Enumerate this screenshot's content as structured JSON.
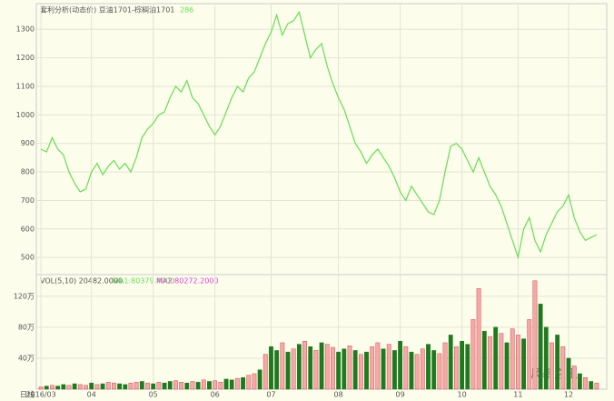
{
  "chart_data": [
    {
      "type": "line",
      "title": "套利分析(动态价) 豆油1701-棕榈油1701",
      "subtitle": "286",
      "period": "日线",
      "watermark": "风暴之王",
      "categories": [
        "2016/03",
        null,
        null,
        null,
        null,
        null,
        null,
        null,
        null,
        "04",
        null,
        null,
        null,
        null,
        null,
        null,
        null,
        null,
        null,
        null,
        "05",
        null,
        null,
        null,
        null,
        null,
        null,
        null,
        null,
        null,
        null,
        "06",
        null,
        null,
        null,
        null,
        null,
        null,
        null,
        null,
        null,
        "07",
        null,
        null,
        null,
        null,
        null,
        null,
        null,
        null,
        null,
        null,
        null,
        "08",
        null,
        null,
        null,
        null,
        null,
        null,
        null,
        null,
        null,
        null,
        "09",
        null,
        null,
        null,
        null,
        null,
        null,
        null,
        null,
        null,
        null,
        "10",
        null,
        null,
        null,
        null,
        null,
        null,
        null,
        null,
        null,
        "11",
        null,
        null,
        null,
        null,
        null,
        null,
        null,
        null,
        "12",
        null,
        null,
        null,
        null,
        null
      ],
      "series": [
        {
          "name": "豆油1701-棕榈油1701",
          "color": "#66dd55",
          "values": [
            880,
            870,
            920,
            880,
            860,
            800,
            760,
            730,
            740,
            800,
            830,
            790,
            820,
            840,
            810,
            830,
            800,
            850,
            920,
            950,
            970,
            1000,
            1010,
            1060,
            1100,
            1080,
            1120,
            1060,
            1040,
            1000,
            960,
            930,
            960,
            1010,
            1060,
            1100,
            1080,
            1130,
            1150,
            1200,
            1250,
            1290,
            1350,
            1280,
            1320,
            1330,
            1360,
            1280,
            1200,
            1230,
            1250,
            1170,
            1110,
            1060,
            1020,
            960,
            900,
            870,
            830,
            860,
            880,
            850,
            820,
            780,
            730,
            700,
            750,
            720,
            690,
            660,
            650,
            700,
            800,
            890,
            900,
            880,
            840,
            800,
            850,
            800,
            750,
            720,
            680,
            620,
            560,
            500,
            600,
            640,
            560,
            520,
            580,
            620,
            660,
            680,
            720,
            640,
            590,
            560,
            570,
            580
          ]
        }
      ],
      "ylim": [
        440,
        1390
      ],
      "yticks": [
        500,
        600,
        700,
        800,
        900,
        1000,
        1100,
        1200,
        1300
      ],
      "grid": true
    },
    {
      "type": "bar",
      "title": "VOL(5,10) 20482.0000",
      "ma_labels": [
        {
          "text": "MA1:80379.4000",
          "color": "#66dd55"
        },
        {
          "text": "MA2:80272.2000",
          "color": "#dd44dd"
        }
      ],
      "palette": {
        "up": "#f5a8a8",
        "down": "#1f7a1f"
      },
      "directions": [
        "up",
        "down",
        "up",
        "down",
        "down",
        "up",
        "down",
        "up",
        "up",
        "down",
        "up",
        "down",
        "up",
        "up",
        "down",
        "down",
        "up",
        "up",
        "down",
        "up",
        "down",
        "up",
        "down",
        "down",
        "up",
        "up",
        "down",
        "up",
        "down",
        "up",
        "down",
        "up",
        "up",
        "down",
        "down",
        "up",
        "down",
        "up",
        "up",
        "down",
        "up",
        "down",
        "down",
        "up",
        "down",
        "up",
        "down",
        "up",
        "down",
        "up",
        "down",
        "up",
        "up",
        "down",
        "down",
        "up",
        "down",
        "up",
        "down",
        "up",
        "up",
        "down",
        "up",
        "down",
        "down",
        "up",
        "down",
        "up",
        "up",
        "down",
        "down",
        "up",
        "up",
        "down",
        "up",
        "down",
        "down",
        "up",
        "up",
        "down",
        "up",
        "down",
        "up",
        "down",
        "up",
        "up",
        "down",
        "up",
        "up",
        "down",
        "down",
        "up",
        "down",
        "up",
        "down",
        "up",
        "down",
        "up",
        "down",
        "up"
      ],
      "values": [
        3,
        4,
        5,
        4,
        6,
        5,
        7,
        6,
        5,
        8,
        6,
        7,
        9,
        8,
        7,
        6,
        8,
        9,
        10,
        8,
        7,
        9,
        8,
        10,
        11,
        9,
        8,
        10,
        9,
        12,
        10,
        11,
        9,
        13,
        12,
        14,
        15,
        18,
        20,
        25,
        45,
        55,
        50,
        60,
        48,
        52,
        58,
        62,
        55,
        50,
        60,
        58,
        54,
        48,
        52,
        56,
        50,
        45,
        48,
        55,
        60,
        52,
        58,
        50,
        62,
        55,
        48,
        45,
        52,
        58,
        50,
        46,
        60,
        70,
        55,
        62,
        58,
        90,
        130,
        75,
        68,
        80,
        72,
        60,
        78,
        70,
        65,
        90,
        140,
        110,
        80,
        60,
        70,
        55,
        40,
        30,
        20,
        15,
        10,
        8
      ],
      "ylim": [
        0,
        148
      ],
      "yticks": [
        {
          "value": 40,
          "label": "40万"
        },
        {
          "value": 80,
          "label": "80万"
        },
        {
          "value": 120,
          "label": "120万"
        }
      ],
      "grid": true
    }
  ]
}
